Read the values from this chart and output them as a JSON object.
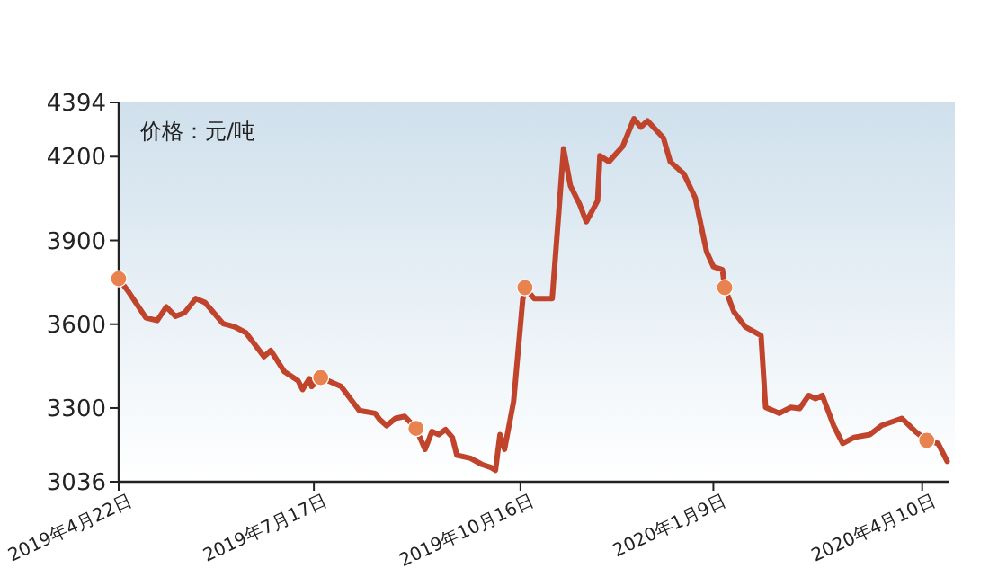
{
  "chart_data": {
    "type": "line",
    "ylabel": "价格：元/吨",
    "xlim": [
      "2019-04-22",
      "2020-04-22"
    ],
    "ylim": [
      3036,
      4394
    ],
    "xticks": [
      {
        "value": "2019-04-22",
        "label": "2019年4月22日"
      },
      {
        "value": "2019-07-17",
        "label": "2019年7月17日"
      },
      {
        "value": "2019-10-16",
        "label": "2019年10月16日"
      },
      {
        "value": "2020-01-09",
        "label": "2020年1月9日"
      },
      {
        "value": "2020-04-10",
        "label": "2020年4月10日"
      }
    ],
    "yticks": [
      3036,
      3300,
      3600,
      3900,
      4200,
      4394
    ],
    "series": [
      {
        "type": "line",
        "color": "#c0432b",
        "line_style": "solid",
        "x": [
          "2019-04-22",
          "2019-04-26",
          "2019-05-04",
          "2019-05-09",
          "2019-05-13",
          "2019-05-17",
          "2019-05-21",
          "2019-05-26",
          "2019-05-30",
          "2019-06-07",
          "2019-06-12",
          "2019-06-17",
          "2019-06-25",
          "2019-06-28",
          "2019-07-04",
          "2019-07-10",
          "2019-07-12",
          "2019-07-15",
          "2019-07-16",
          "2019-07-20",
          "2019-07-29",
          "2019-08-06",
          "2019-08-13",
          "2019-08-15",
          "2019-08-18",
          "2019-08-22",
          "2019-08-26",
          "2019-08-31",
          "2019-09-04",
          "2019-09-07",
          "2019-09-10",
          "2019-09-13",
          "2019-09-16",
          "2019-09-18",
          "2019-09-24",
          "2019-09-29",
          "2019-10-03",
          "2019-10-05",
          "2019-10-07",
          "2019-10-09",
          "2019-10-13",
          "2019-10-17",
          "2019-10-18",
          "2019-10-22",
          "2019-10-30",
          "2019-11-04",
          "2019-11-07",
          "2019-11-11",
          "2019-11-14",
          "2019-11-19",
          "2019-11-20",
          "2019-11-24",
          "2019-11-30",
          "2019-12-05",
          "2019-12-08",
          "2019-12-11",
          "2019-12-18",
          "2019-12-21",
          "2019-12-27",
          "2020-01-01",
          "2020-01-06",
          "2020-01-09",
          "2020-01-13",
          "2020-01-14",
          "2020-01-18",
          "2020-01-23",
          "2020-01-30",
          "2020-02-01",
          "2020-02-07",
          "2020-02-12",
          "2020-02-16",
          "2020-02-20",
          "2020-02-23",
          "2020-02-26",
          "2020-03-02",
          "2020-03-06",
          "2020-03-11",
          "2020-03-18",
          "2020-03-23",
          "2020-04-01",
          "2020-04-07",
          "2020-04-12",
          "2020-04-17",
          "2020-04-21"
        ],
        "values": [
          3763,
          3720,
          3623,
          3613,
          3662,
          3628,
          3641,
          3692,
          3678,
          3602,
          3591,
          3570,
          3484,
          3506,
          3430,
          3398,
          3366,
          3405,
          3377,
          3409,
          3377,
          3291,
          3281,
          3259,
          3237,
          3263,
          3270,
          3227,
          3152,
          3216,
          3205,
          3223,
          3195,
          3131,
          3120,
          3098,
          3087,
          3077,
          3205,
          3152,
          3324,
          3688,
          3731,
          3692,
          3692,
          4228,
          4096,
          4031,
          3967,
          4042,
          4203,
          4182,
          4236,
          4336,
          4306,
          4328,
          4267,
          4182,
          4138,
          4053,
          3860,
          3806,
          3795,
          3731,
          3645,
          3591,
          3559,
          3302,
          3281,
          3302,
          3298,
          3345,
          3334,
          3345,
          3237,
          3173,
          3195,
          3205,
          3237,
          3263,
          3216,
          3184,
          3173,
          3109
        ]
      },
      {
        "type": "scatter",
        "color": "#e8834f",
        "marker": "circle",
        "x": [
          "2019-04-22",
          "2019-07-20",
          "2019-08-31",
          "2019-10-18",
          "2020-01-14",
          "2020-04-12"
        ],
        "values": [
          3763,
          3409,
          3227,
          3731,
          3731,
          3184
        ]
      }
    ]
  }
}
